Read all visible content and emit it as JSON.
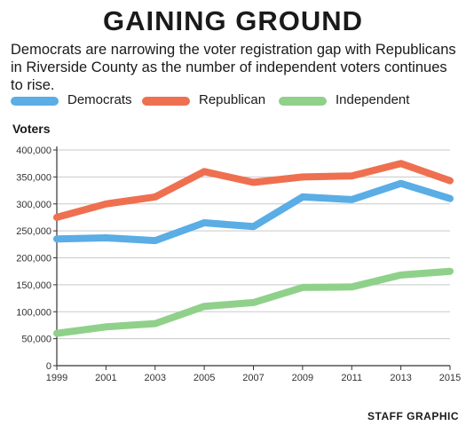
{
  "header": {
    "title": "GAINING GROUND",
    "subtitle": "Democrats are narrowing the voter registration gap with Republicans in Riverside County as the number of independent voters continues to rise."
  },
  "footer": {
    "credit": "STAFF GRAPHIC"
  },
  "chart_data": {
    "type": "line",
    "title": "GAINING GROUND",
    "ylabel": "Voters",
    "xlabel": "",
    "legend_position": "top",
    "grid": true,
    "x": [
      1999,
      2001,
      2003,
      2005,
      2007,
      2009,
      2011,
      2013,
      2015
    ],
    "x_tick_labels": [
      "1999",
      "2001",
      "2003",
      "2005",
      "2007",
      "2009",
      "2011",
      "2013",
      "2015"
    ],
    "ylim": [
      0,
      400000
    ],
    "y_ticks": [
      0,
      50000,
      100000,
      150000,
      200000,
      250000,
      300000,
      350000,
      400000
    ],
    "y_tick_labels": [
      "0",
      "50,000",
      "100,000",
      "150,000",
      "200,000",
      "250,000",
      "300,000",
      "350,000",
      "400,000"
    ],
    "series": [
      {
        "name": "Democrats",
        "color": "#5aade5",
        "values": [
          235000,
          237000,
          232000,
          265000,
          258000,
          313000,
          308000,
          338000,
          310000
        ]
      },
      {
        "name": "Republican",
        "color": "#ee7050",
        "values": [
          275000,
          300000,
          313000,
          360000,
          340000,
          350000,
          352000,
          375000,
          343000
        ]
      },
      {
        "name": "Independent",
        "color": "#8fd18a",
        "values": [
          60000,
          72000,
          78000,
          110000,
          117000,
          145000,
          146000,
          168000,
          175000
        ]
      }
    ]
  }
}
